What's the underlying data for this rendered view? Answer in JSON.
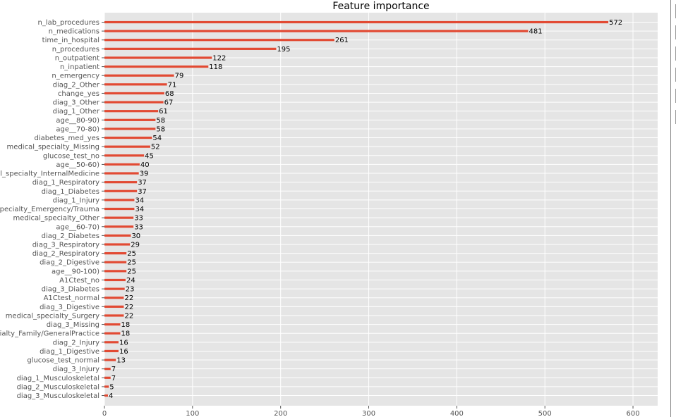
{
  "chart_data": {
    "type": "bar",
    "orientation": "horizontal",
    "title": "Feature importance",
    "xlabel": "",
    "ylabel": "",
    "xlim": [
      0,
      628
    ],
    "xticks": [
      0,
      100,
      200,
      300,
      400,
      500,
      600
    ],
    "grid": true,
    "bar_color": "#e24a33",
    "background_color": "#e5e5e5",
    "grid_color": "#ffffff",
    "categories": [
      "n_lab_procedures",
      "n_medications",
      "time_in_hospital",
      "n_procedures",
      "n_outpatient",
      "n_inpatient",
      "n_emergency",
      "diag_2_Other",
      "change_yes",
      "diag_3_Other",
      "diag_1_Other",
      "age__80-90)",
      "age__70-80)",
      "diabetes_med_yes",
      "medical_specialty_Missing",
      "glucose_test_no",
      "age__50-60)",
      "medical_specialty_InternalMedicine",
      "diag_1_Respiratory",
      "diag_1_Diabetes",
      "diag_1_Injury",
      "medical_specialty_Emergency/Trauma",
      "medical_specialty_Other",
      "age__60-70)",
      "diag_2_Diabetes",
      "diag_3_Respiratory",
      "diag_2_Respiratory",
      "diag_2_Digestive",
      "age__90-100)",
      "A1Ctest_no",
      "diag_3_Diabetes",
      "A1Ctest_normal",
      "diag_3_Digestive",
      "medical_specialty_Surgery",
      "diag_3_Missing",
      "medical_specialty_Family/GeneralPractice",
      "diag_2_Injury",
      "diag_1_Digestive",
      "glucose_test_normal",
      "diag_3_Injury",
      "diag_1_Musculoskeletal",
      "diag_2_Musculoskeletal",
      "diag_3_Musculoskeletal"
    ],
    "values": [
      572,
      481,
      261,
      195,
      122,
      118,
      79,
      71,
      68,
      67,
      61,
      58,
      58,
      54,
      52,
      45,
      40,
      39,
      37,
      37,
      34,
      34,
      33,
      33,
      30,
      29,
      25,
      25,
      25,
      24,
      23,
      22,
      22,
      22,
      18,
      18,
      16,
      16,
      13,
      7,
      7,
      5,
      4
    ]
  }
}
